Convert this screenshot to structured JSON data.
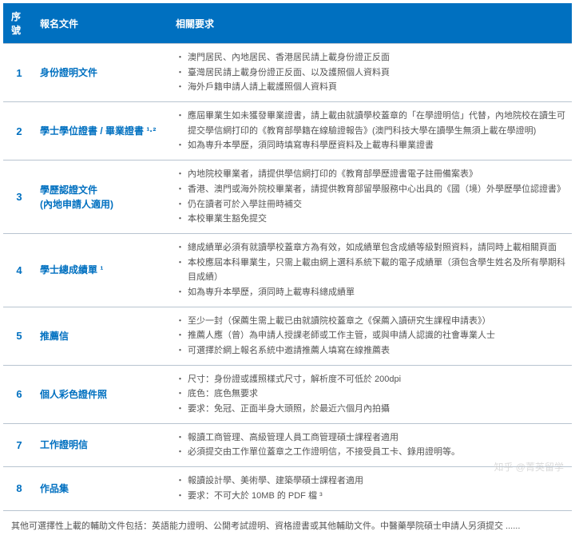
{
  "header": {
    "col_num": "序號",
    "col_doc": "報名文件",
    "col_req": "相關要求"
  },
  "rows": [
    {
      "num": "1",
      "doc": "身份證明文件",
      "reqs": [
        "澳門居民、內地居民、香港居民請上載身份證正反面",
        "臺灣居民請上載身份證正反面、以及護照個人資料頁",
        "海外戶籍申請人請上載護照個人資料頁"
      ]
    },
    {
      "num": "2",
      "doc": "學士學位證書 / 畢業證書 ¹·²",
      "reqs": [
        "應屆畢業生如未獲發畢業證書，請上載由就讀學校蓋章的「在學證明信」代替，內地院校在讀生可提交學信網打印的《教育部學籍在線驗證報告》(澳門科技大學在讀學生無須上載在學證明)",
        "如為専升本學歷，須同時填寫専科學歷資料及上載専科畢業證書"
      ]
    },
    {
      "num": "3",
      "doc": "學歷認證文件\n(內地申請人適用)",
      "reqs": [
        "內地院校畢業者，請提供學信網打印的《教育部學歷證書電子註冊備案表》",
        "香港、澳門或海外院校畢業者，請提供教育部留學服務中心出具的《國（境）外學歷學位認證書》",
        "仍在讀者可於入學註冊時補交",
        "本校畢業生豁免提交"
      ]
    },
    {
      "num": "4",
      "doc": "學士總成績單 ¹",
      "reqs": [
        "總成績單必須有就讀學校蓋章方為有效，如成績單包含成績等級對照資料，請同時上載相關頁面",
        "本校應屆本科畢業生，只需上載由網上選科系統下載的電子成績單（須包含學生姓名及所有學期科目成績）",
        "如為専升本學歷，須同時上載専科總成績單"
      ]
    },
    {
      "num": "5",
      "doc": "推薦信",
      "reqs": [
        "至少一封（保薦生需上載已由就讀院校蓋章之《保薦入讀研究生課程申請表》）",
        "推薦人應（曾）為申請人授課老師或工作主管，或與申請人認識的社會專業人士",
        "可選擇於網上報名系統中邀請推薦人填寫在線推薦表"
      ]
    },
    {
      "num": "6",
      "doc": "個人彩色證件照",
      "reqs": [
        "尺寸：身份證或護照樣式尺寸，解析度不可低於 200dpi",
        "底色：底色無要求",
        "要求：免冠、正面半身大頭照，於最近六個月內拍攝"
      ]
    },
    {
      "num": "7",
      "doc": "工作證明信",
      "reqs": [
        "報讀工商管理、高級管理人員工商管理碩士課程者適用",
        "必須提交由工作單位蓋章之工作證明信，不接受員工卡、錄用證明等。"
      ]
    },
    {
      "num": "8",
      "doc": "作品集",
      "reqs": [
        "報讀設計學、美術學、建築學碩士課程者適用",
        "要求：不可大於 10MB 的 PDF 檔 ³"
      ]
    }
  ],
  "footer": "其他可選擇性上載的輔助文件包括：英語能力證明、公開考試證明、資格證書或其他輔助文件。中醫藥學院碩士申請人另須提交 ......",
  "watermark": "知乎 @菁英留学",
  "colors": {
    "header_bg": "#0070c0",
    "header_fg": "#ffffff",
    "border": "#b8c4d0",
    "accent": "#0070c0",
    "text": "#555555"
  }
}
